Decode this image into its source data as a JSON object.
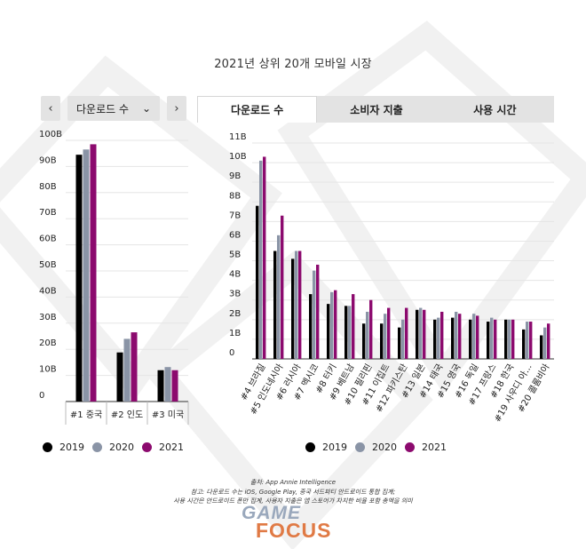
{
  "page": {
    "title": "2021년 상위 20개 모바일 시장"
  },
  "controls": {
    "prev_icon": "chevron-left-icon",
    "next_icon": "chevron-right-icon",
    "prev_glyph": "‹",
    "next_glyph": "›",
    "metric_select_value": "다운로드 수",
    "metric_select_caret": "⌄"
  },
  "tabs": [
    {
      "label": "다운로드 수",
      "active": true
    },
    {
      "label": "소비자 지출",
      "active": false
    },
    {
      "label": "사용 시간",
      "active": false
    }
  ],
  "colors": {
    "2019": "#000000",
    "2020": "#8a94a6",
    "2021": "#8c0a6e",
    "grid": "#e5e5e5",
    "axis": "#333333"
  },
  "chart_data": [
    {
      "type": "bar",
      "categories": [
        "#1 중국",
        "#2 인도",
        "#3 미국"
      ],
      "series": [
        {
          "name": "2019",
          "values": [
            94.5,
            18.8,
            12.0
          ]
        },
        {
          "name": "2020",
          "values": [
            96.5,
            24.0,
            13.2
          ]
        },
        {
          "name": "2021",
          "values": [
            98.5,
            26.5,
            12.0
          ]
        }
      ],
      "y_unit": "B",
      "ylim": [
        0,
        100
      ],
      "y_ticks": [
        "0",
        "10B",
        "20B",
        "30B",
        "40B",
        "50B",
        "60B",
        "70B",
        "80B",
        "90B",
        "100B"
      ],
      "grid": true,
      "legend": [
        "2019",
        "2020",
        "2021"
      ],
      "legend_position": "bottom"
    },
    {
      "type": "bar",
      "categories": [
        "#4 브라질",
        "#5 인도네시아",
        "#6 러시아",
        "#7 멕시코",
        "#8 터키",
        "#9 베트남",
        "#10 필리핀",
        "#11 이집트",
        "#12 파키스탄",
        "#13 일본",
        "#14 태국",
        "#15 영국",
        "#16 독일",
        "#17 프랑스",
        "#18 한국",
        "#19 사우디 아...",
        "#20 콜롬비아"
      ],
      "series": [
        {
          "name": "2019",
          "values": [
            7.8,
            5.5,
            5.1,
            3.3,
            2.8,
            2.7,
            1.8,
            1.8,
            1.6,
            2.5,
            2.0,
            2.1,
            2.0,
            1.9,
            2.0,
            1.5,
            1.2
          ]
        },
        {
          "name": "2020",
          "values": [
            10.1,
            6.3,
            5.5,
            4.5,
            3.4,
            2.7,
            2.4,
            2.3,
            2.0,
            2.6,
            2.1,
            2.4,
            2.3,
            2.1,
            2.0,
            1.9,
            1.6
          ]
        },
        {
          "name": "2021",
          "values": [
            10.3,
            7.3,
            5.5,
            4.8,
            3.5,
            3.3,
            3.0,
            2.6,
            2.6,
            2.5,
            2.4,
            2.3,
            2.2,
            2.0,
            2.0,
            1.9,
            1.8
          ]
        }
      ],
      "y_unit": "B",
      "ylim": [
        0,
        11
      ],
      "y_ticks": [
        "0",
        "1B",
        "2B",
        "3B",
        "4B",
        "5B",
        "6B",
        "7B",
        "8B",
        "9B",
        "10B",
        "11B"
      ],
      "grid": true,
      "legend": [
        "2019",
        "2020",
        "2021"
      ],
      "legend_position": "bottom"
    }
  ],
  "legend_left": [
    {
      "label": "2019",
      "color": "#000000"
    },
    {
      "label": "2020",
      "color": "#8a94a6"
    },
    {
      "label": "2021",
      "color": "#8c0a6e"
    }
  ],
  "legend_right": [
    {
      "label": "2019",
      "color": "#000000"
    },
    {
      "label": "2020",
      "color": "#8a94a6"
    },
    {
      "label": "2021",
      "color": "#8c0a6e"
    }
  ],
  "footer": {
    "source": "출처: App Annie Intelligence",
    "note1": "참고: 다운로드 수는 iOS, Google Play, 중국 서드파티 안드로이드 통합 집계;",
    "note2": "사용 시간은 안드로이드 폰만 집계, 사용자 지출은 앱 스토어가 차지한 비율 포함 총액을 의미"
  },
  "logo": {
    "top": "GAME",
    "bottom": "FOCUS"
  }
}
